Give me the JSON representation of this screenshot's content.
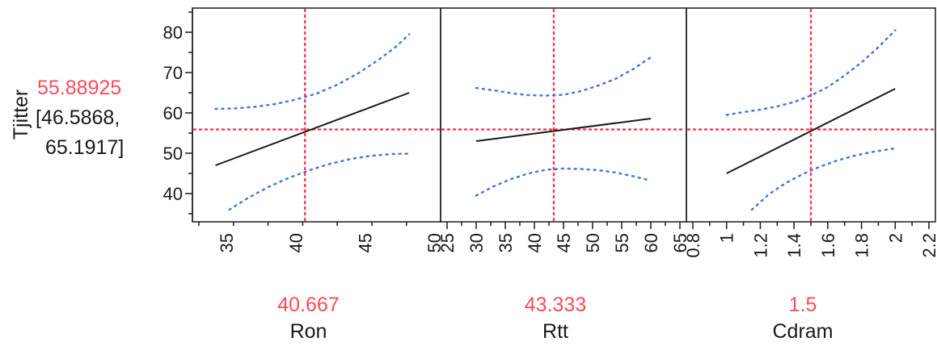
{
  "chart_data": {
    "type": "line",
    "title": "",
    "response": {
      "name": "Tjitter",
      "predicted": "55.88925",
      "ci_line1": "[46.5868,",
      "ci_line2": "65.1917]",
      "predicted_value": 55.88925,
      "ylim": [
        33,
        86
      ],
      "yticks": [
        40,
        50,
        60,
        70,
        80
      ]
    },
    "colors": {
      "fit": "#1a1a1a",
      "ci": "#4b73e6",
      "crosshair": "#ff3b4e",
      "current": "#ff4a5a",
      "axis": "#1a1a1a"
    },
    "grid": false,
    "panels": [
      {
        "factor": "Ron",
        "current_label": "40.667",
        "current": 40.667,
        "xlim": [
          33,
          50
        ],
        "xticks": [
          35,
          40,
          45,
          50
        ],
        "xtick_labels": [
          "35",
          "40",
          "45",
          "50"
        ],
        "fit": {
          "x": [
            34.2,
            48.2
          ],
          "y": [
            47,
            65
          ]
        },
        "lower": {
          "x": [
            35.2,
            36.5,
            38,
            39.5,
            41,
            42.5,
            44,
            45.5,
            47,
            48.2
          ],
          "y": [
            36,
            38.8,
            41.6,
            43.9,
            45.8,
            47.4,
            48.6,
            49.4,
            49.8,
            49.9
          ]
        },
        "upper": {
          "x": [
            34.2,
            35.5,
            37,
            38.5,
            40,
            41.5,
            43,
            44.5,
            46,
            47.2,
            48.2
          ],
          "y": [
            61,
            61.1,
            61.5,
            62.2,
            63.3,
            64.8,
            67,
            69.8,
            73.2,
            76.3,
            79.5
          ]
        }
      },
      {
        "factor": "Rtt",
        "current_label": "43.333",
        "current": 43.333,
        "xlim": [
          25,
          65
        ],
        "xticks": [
          25,
          30,
          35,
          40,
          45,
          50,
          55,
          60,
          65
        ],
        "xtick_labels": [
          "25",
          "30",
          "35",
          "40",
          "45",
          "50",
          "55",
          "60",
          "65"
        ],
        "fit": {
          "x": [
            30,
            60
          ],
          "y": [
            53,
            58.6
          ]
        },
        "lower": {
          "x": [
            30,
            33,
            36,
            39,
            42,
            45,
            48,
            51,
            54,
            57,
            60
          ],
          "y": [
            39.5,
            41.8,
            43.6,
            45,
            45.9,
            46.2,
            46.1,
            45.8,
            45.2,
            44.3,
            43.2
          ]
        },
        "upper": {
          "x": [
            30,
            33,
            36,
            39,
            42,
            45,
            48,
            51,
            54,
            57,
            60
          ],
          "y": [
            66.2,
            65.6,
            64.9,
            64.4,
            64.3,
            64.5,
            65.4,
            66.8,
            68.5,
            70.9,
            73.8
          ]
        }
      },
      {
        "factor": "Cdram",
        "current_label": "1.5",
        "current": 1.5,
        "xlim": [
          0.8,
          2.2
        ],
        "xticks": [
          0.8,
          1,
          1.2,
          1.4,
          1.6,
          1.8,
          2,
          2.2
        ],
        "xtick_labels": [
          "0.8",
          "1",
          "1.2",
          "1.4",
          "1.6",
          "1.8",
          "2",
          "2.2"
        ],
        "fit": {
          "x": [
            1,
            2
          ],
          "y": [
            45,
            66
          ]
        },
        "lower": {
          "x": [
            1.15,
            1.25,
            1.35,
            1.45,
            1.55,
            1.65,
            1.75,
            1.85,
            1.95,
            2
          ],
          "y": [
            36,
            39.8,
            42.6,
            44.8,
            46.6,
            48.1,
            49.3,
            50.2,
            50.9,
            51.2
          ]
        },
        "upper": {
          "x": [
            1,
            1.1,
            1.2,
            1.3,
            1.4,
            1.5,
            1.6,
            1.7,
            1.8,
            1.9,
            2
          ],
          "y": [
            59.5,
            60.2,
            60.8,
            61.6,
            62.7,
            64.3,
            66.4,
            69.3,
            72.5,
            76.3,
            80.5
          ]
        }
      }
    ]
  }
}
